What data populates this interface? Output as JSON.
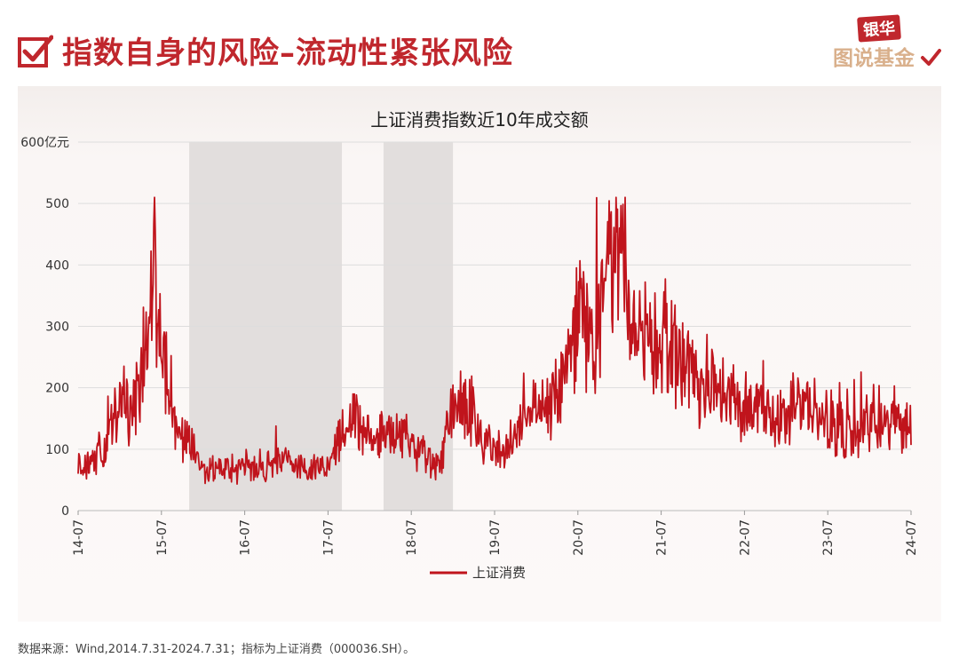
{
  "header": {
    "title": "指数自身的风险–流动性紧张风险",
    "logo_top": "银华",
    "logo_bottom": "图说基金"
  },
  "chart_data": {
    "type": "line",
    "title": "上证消费指数近10年成交额",
    "ylabel": "",
    "y_unit_label": "600亿元",
    "ylim": [
      0,
      600
    ],
    "yticks": [
      "0",
      "100",
      "200",
      "300",
      "400",
      "500",
      "600亿元"
    ],
    "xlim": [
      "2014-07",
      "2024-07"
    ],
    "xticks": [
      "14-07",
      "15-07",
      "16-07",
      "17-07",
      "18-07",
      "19-07",
      "20-07",
      "21-07",
      "22-07",
      "23-07",
      "24-07"
    ],
    "grid": true,
    "legend_position": "bottom",
    "line_color": "#c0141c",
    "shaded_color": "#e2dedd",
    "shaded_periods": [
      {
        "start": "2015-11",
        "end": "2017-09"
      },
      {
        "start": "2018-03",
        "end": "2019-01"
      }
    ],
    "series": [
      {
        "name": "上证消费",
        "x": [
          "2014-07",
          "2014-09",
          "2014-11",
          "2015-01",
          "2015-03",
          "2015-05",
          "2015-06",
          "2015-07",
          "2015-08",
          "2015-09",
          "2015-11",
          "2016-01",
          "2016-03",
          "2016-05",
          "2016-07",
          "2016-09",
          "2016-11",
          "2017-01",
          "2017-03",
          "2017-05",
          "2017-07",
          "2017-09",
          "2017-11",
          "2018-01",
          "2018-03",
          "2018-05",
          "2018-07",
          "2018-09",
          "2018-11",
          "2019-01",
          "2019-03",
          "2019-05",
          "2019-07",
          "2019-09",
          "2019-11",
          "2020-01",
          "2020-03",
          "2020-05",
          "2020-07",
          "2020-09",
          "2020-11",
          "2021-01",
          "2021-03",
          "2021-05",
          "2021-07",
          "2021-09",
          "2021-11",
          "2022-01",
          "2022-03",
          "2022-05",
          "2022-07",
          "2022-09",
          "2022-11",
          "2023-01",
          "2023-03",
          "2023-05",
          "2023-07",
          "2023-09",
          "2023-11",
          "2024-01",
          "2024-03",
          "2024-05",
          "2024-07"
        ],
        "values": [
          70,
          85,
          105,
          180,
          160,
          270,
          410,
          290,
          185,
          140,
          110,
          65,
          70,
          65,
          75,
          65,
          75,
          80,
          70,
          70,
          80,
          130,
          150,
          115,
          120,
          130,
          110,
          85,
          70,
          175,
          190,
          120,
          100,
          105,
          130,
          165,
          175,
          215,
          330,
          250,
          360,
          420,
          300,
          260,
          310,
          245,
          240,
          195,
          205,
          190,
          175,
          160,
          155,
          150,
          185,
          140,
          150,
          130,
          120,
          150,
          135,
          155,
          125
        ]
      }
    ]
  },
  "source_note": "数据来源：Wind,2014.7.31-2024.7.31；指标为上证消费（000036.SH）。"
}
